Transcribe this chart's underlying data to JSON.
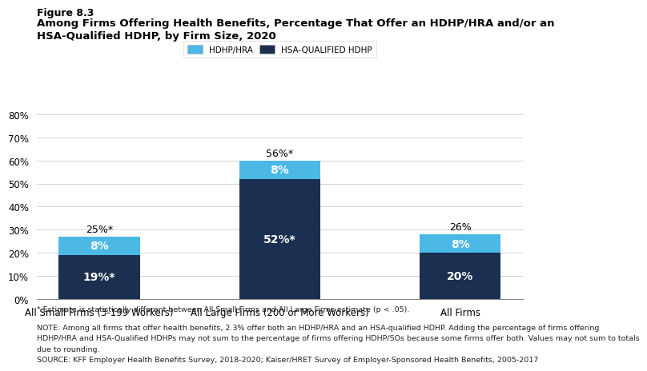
{
  "figure_label": "Figure 8.3",
  "title_line1": "Among Firms Offering Health Benefits, Percentage That Offer an HDHP/HRA and/or an",
  "title_line2": "HSA-Qualified HDHP, by Firm Size, 2020",
  "categories": [
    "All Small Firms (3-199 Workers)",
    "All Large Firms (200 or More Workers)",
    "All Firms"
  ],
  "hsa_values": [
    19,
    52,
    20
  ],
  "hdhp_values": [
    8,
    8,
    8
  ],
  "hsa_labels": [
    "19%*",
    "52%*",
    "20%"
  ],
  "hdhp_labels": [
    "8%",
    "8%",
    "8%"
  ],
  "total_labels": [
    "25%*",
    "56%*",
    "26%"
  ],
  "hsa_color": "#1b2f50",
  "hdhp_color": "#4cb8e6",
  "ylim": [
    0,
    80
  ],
  "yticks": [
    0,
    10,
    20,
    30,
    40,
    50,
    60,
    70,
    80
  ],
  "legend_labels": [
    "HDHP/HRA",
    "HSA-QUALIFIED HDHP"
  ],
  "legend_colors": [
    "#4cb8e6",
    "#1b2f50"
  ],
  "footnote1": "* Estimate is statistically different between All Small Firms and All Large Firms estimate (p < .05).",
  "footnote2": "NOTE: Among all firms that offer health benefits, 2.3% offer both an HDHP/HRA and an HSA-qualified HDHP. Adding the percentage of firms offering",
  "footnote3": "HDHP/HRA and HSA-Qualified HDHPs may not sum to the percentage of firms offering HDHP/SOs because some firms offer both. Values may not sum to totals",
  "footnote4": "due to rounding.",
  "footnote5": "SOURCE: KFF Employer Health Benefits Survey, 2018-2020; Kaiser/HRET Survey of Employer-Sponsored Health Benefits, 2005-2017",
  "bar_width": 0.45,
  "background_color": "#ffffff"
}
